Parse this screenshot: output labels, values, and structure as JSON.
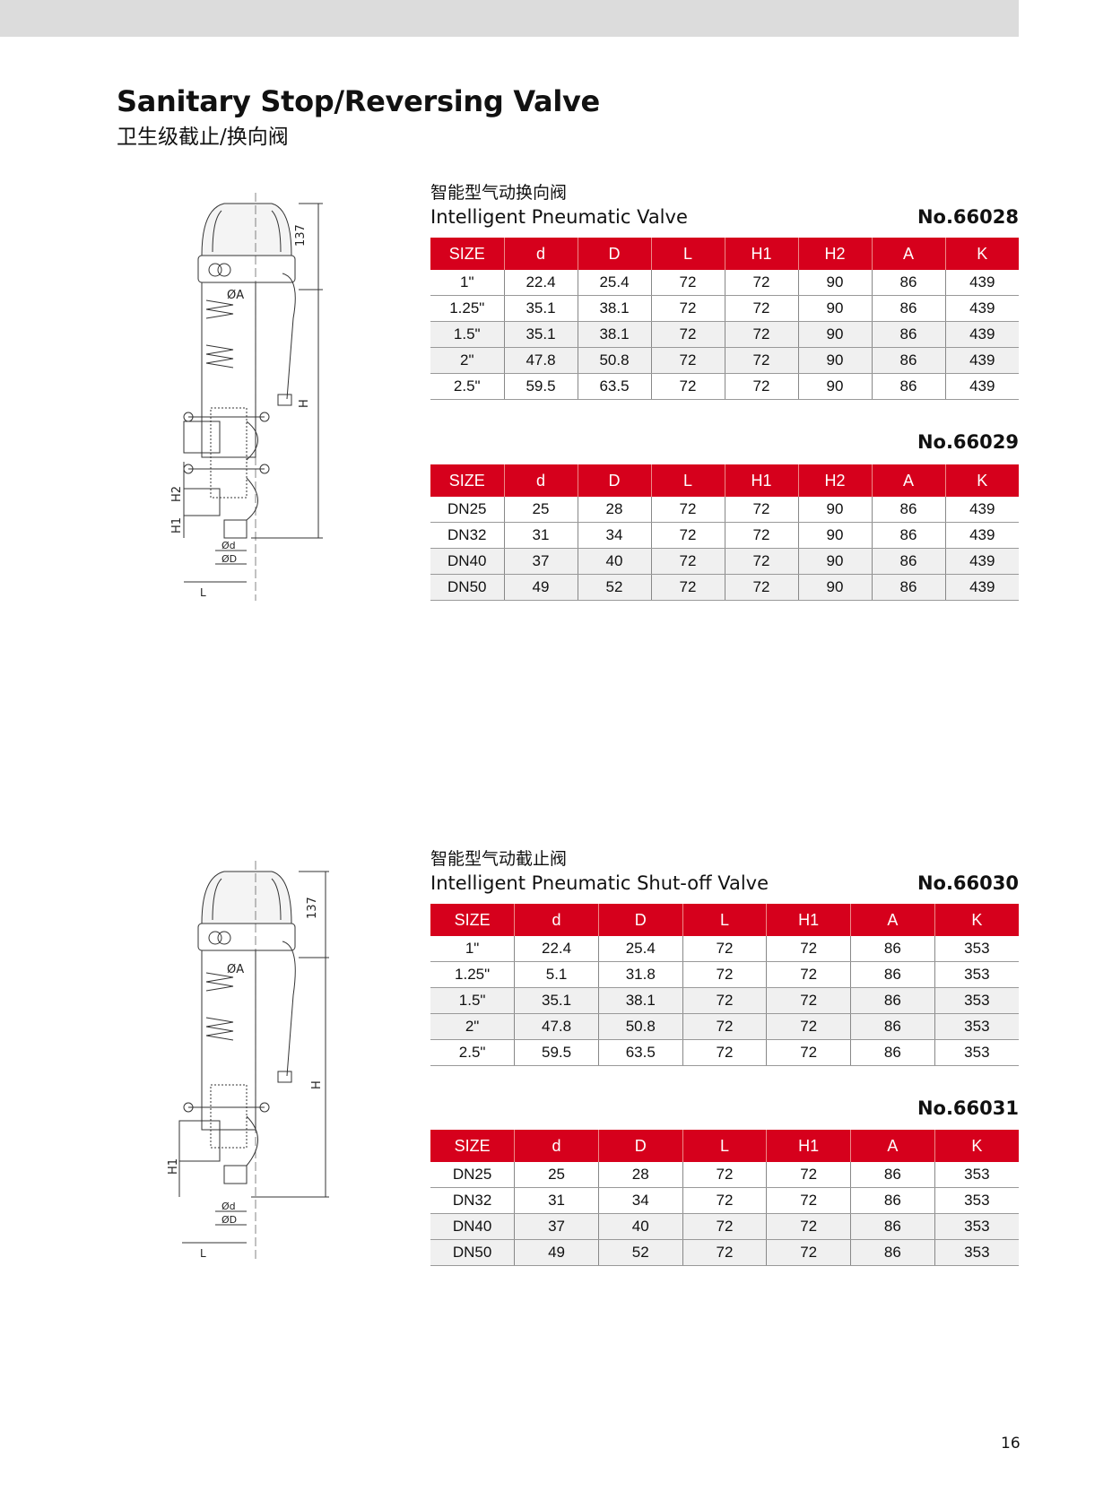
{
  "header": {
    "title": "Sanitary Stop/Reversing Valve",
    "subtitle": "卫生级截止/换向阀"
  },
  "colors": {
    "table_header_bg": "#d6001c",
    "top_bar": "#dcdcdc",
    "shade_row": "#f0f0f0"
  },
  "sections": [
    {
      "title_cn": "智能型气动换向阀",
      "title_en": "Intelligent Pneumatic Valve",
      "drawing_labels": {
        "k": "137",
        "a": "ØA",
        "h": "H",
        "h1": "H1",
        "h2": "H2",
        "d": "Ød",
        "D": "ØD",
        "l": "L"
      },
      "tables": [
        {
          "number": "No.66028",
          "columns": [
            "SIZE",
            "d",
            "D",
            "L",
            "H1",
            "H2",
            "A",
            "K"
          ],
          "rows": [
            [
              "1\"",
              "22.4",
              "25.4",
              "72",
              "72",
              "90",
              "86",
              "439"
            ],
            [
              "1.25\"",
              "35.1",
              "38.1",
              "72",
              "72",
              "90",
              "86",
              "439"
            ],
            [
              "1.5\"",
              "35.1",
              "38.1",
              "72",
              "72",
              "90",
              "86",
              "439"
            ],
            [
              "2\"",
              "47.8",
              "50.8",
              "72",
              "72",
              "90",
              "86",
              "439"
            ],
            [
              "2.5\"",
              "59.5",
              "63.5",
              "72",
              "72",
              "90",
              "86",
              "439"
            ]
          ]
        },
        {
          "number": "No.66029",
          "columns": [
            "SIZE",
            "d",
            "D",
            "L",
            "H1",
            "H2",
            "A",
            "K"
          ],
          "rows": [
            [
              "DN25",
              "25",
              "28",
              "72",
              "72",
              "90",
              "86",
              "439"
            ],
            [
              "DN32",
              "31",
              "34",
              "72",
              "72",
              "90",
              "86",
              "439"
            ],
            [
              "DN40",
              "37",
              "40",
              "72",
              "72",
              "90",
              "86",
              "439"
            ],
            [
              "DN50",
              "49",
              "52",
              "72",
              "72",
              "90",
              "86",
              "439"
            ]
          ]
        }
      ]
    },
    {
      "title_cn": "智能型气动截止阀",
      "title_en": "Intelligent Pneumatic Shut-off Valve",
      "drawing_labels": {
        "k": "137",
        "a": "ØA",
        "h": "H",
        "h1": "H1",
        "d": "Ød",
        "D": "ØD",
        "l": "L"
      },
      "tables": [
        {
          "number": "No.66030",
          "columns": [
            "SIZE",
            "d",
            "D",
            "L",
            "H1",
            "A",
            "K"
          ],
          "rows": [
            [
              "1\"",
              "22.4",
              "25.4",
              "72",
              "72",
              "86",
              "353"
            ],
            [
              "1.25\"",
              "5.1",
              "31.8",
              "72",
              "72",
              "86",
              "353"
            ],
            [
              "1.5\"",
              "35.1",
              "38.1",
              "72",
              "72",
              "86",
              "353"
            ],
            [
              "2\"",
              "47.8",
              "50.8",
              "72",
              "72",
              "86",
              "353"
            ],
            [
              "2.5\"",
              "59.5",
              "63.5",
              "72",
              "72",
              "86",
              "353"
            ]
          ]
        },
        {
          "number": "No.66031",
          "columns": [
            "SIZE",
            "d",
            "D",
            "L",
            "H1",
            "A",
            "K"
          ],
          "rows": [
            [
              "DN25",
              "25",
              "28",
              "72",
              "72",
              "86",
              "353"
            ],
            [
              "DN32",
              "31",
              "34",
              "72",
              "72",
              "86",
              "353"
            ],
            [
              "DN40",
              "37",
              "40",
              "72",
              "72",
              "86",
              "353"
            ],
            [
              "DN50",
              "49",
              "52",
              "72",
              "72",
              "86",
              "353"
            ]
          ]
        }
      ]
    }
  ],
  "page_number": "16"
}
